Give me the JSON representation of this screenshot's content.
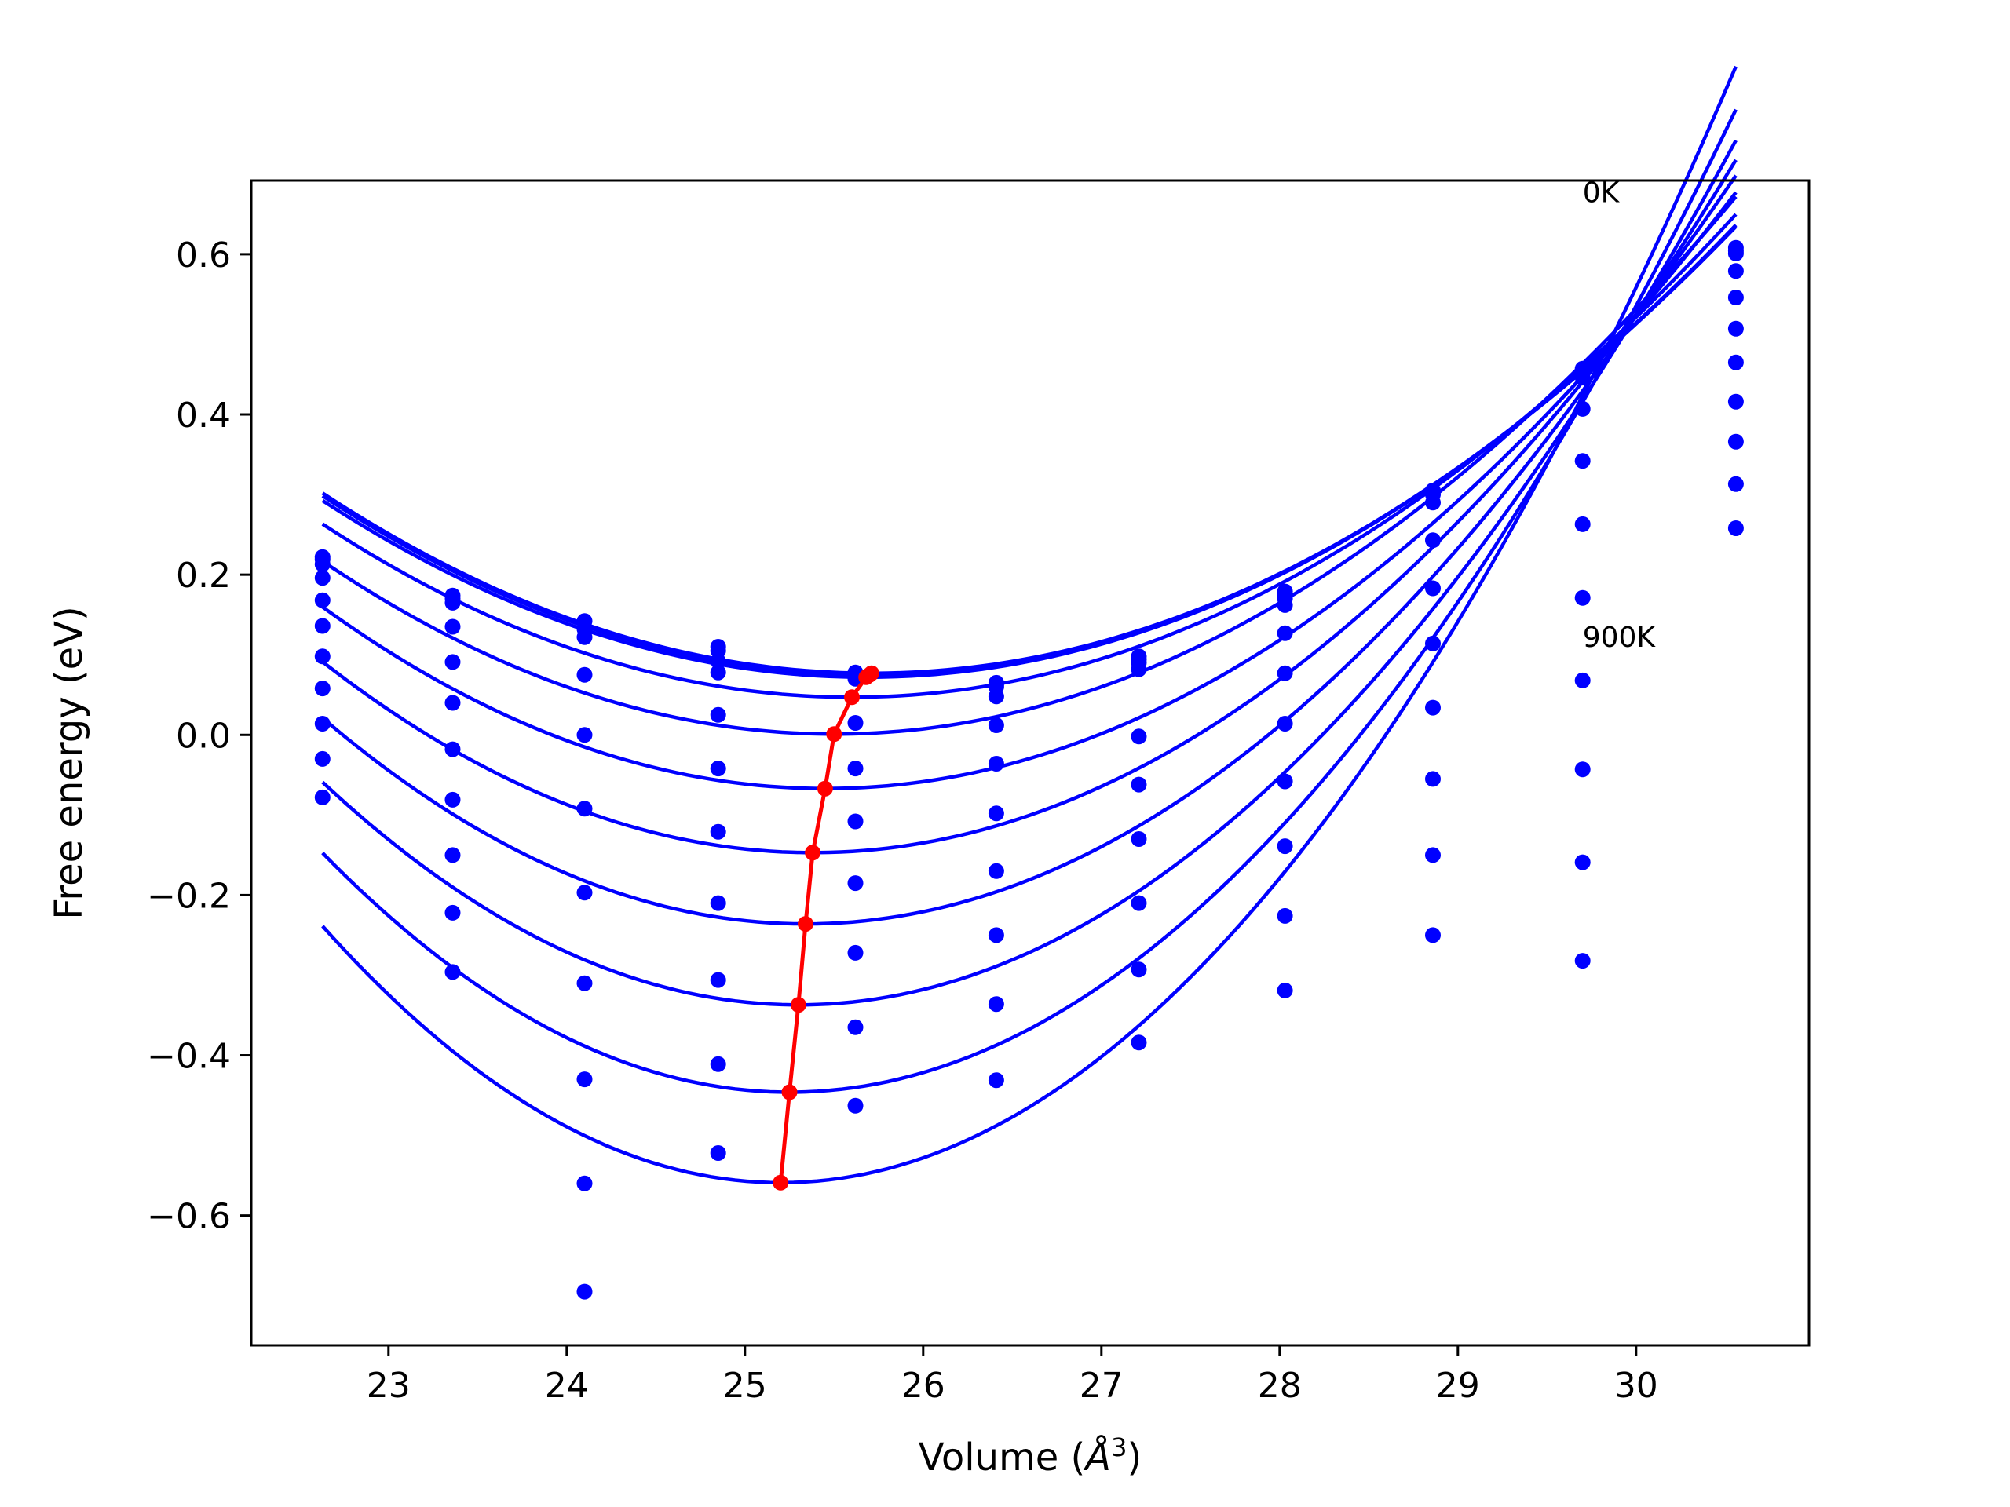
{
  "chart_data": {
    "type": "line",
    "xlabel": "Volume (Å³)",
    "xlabel_text": "Volume (",
    "xlabel_symbol": "Å",
    "xlabel_exp": "3",
    "xlabel_close": ")",
    "ylabel": "Free energy (eV)",
    "xlim": [
      22.23,
      30.97
    ],
    "ylim": [
      -0.762,
      0.692
    ],
    "x_ticks": [
      23,
      24,
      25,
      26,
      27,
      28,
      29,
      30
    ],
    "x_tick_labels": [
      "23",
      "24",
      "25",
      "26",
      "27",
      "28",
      "29",
      "30"
    ],
    "y_ticks": [
      -0.6,
      -0.4,
      -0.2,
      0.0,
      0.2,
      0.4,
      0.6
    ],
    "y_tick_labels": [
      "−0.6",
      "−0.4",
      "−0.2",
      "0.0",
      "0.2",
      "0.4",
      "0.6"
    ],
    "grid": false,
    "annotations": [
      {
        "text": "0K",
        "x": 29.7,
        "y": 0.665
      },
      {
        "text": "900K",
        "x": 29.7,
        "y": 0.11
      }
    ],
    "volumes": [
      22.63,
      23.36,
      24.1,
      24.85,
      25.62,
      26.41,
      27.21,
      28.03,
      28.86,
      29.7,
      30.56
    ],
    "series": [
      {
        "values": [
          0.222,
          0.174,
          0.142,
          0.11,
          0.078,
          0.065,
          0.098,
          0.179,
          0.305,
          0.457,
          0.608
        ]
      },
      {
        "values": [
          0.219,
          0.17,
          0.132,
          0.105,
          0.075,
          0.063,
          0.094,
          0.175,
          0.3,
          0.452,
          0.604
        ]
      },
      {
        "values": [
          0.213,
          0.165,
          0.122,
          0.092,
          0.07,
          0.06,
          0.09,
          0.17,
          0.29,
          0.446,
          0.601
        ]
      },
      {
        "values": [
          0.196,
          0.135,
          0.075,
          0.078,
          0.015,
          0.048,
          0.082,
          0.162,
          0.243,
          0.407,
          0.579
        ]
      },
      {
        "values": [
          0.168,
          0.091,
          0.0,
          0.025,
          -0.042,
          0.012,
          -0.002,
          0.127,
          0.183,
          0.342,
          0.546
        ]
      },
      {
        "values": [
          0.136,
          0.04,
          -0.092,
          -0.042,
          -0.108,
          -0.036,
          -0.062,
          0.077,
          0.114,
          0.263,
          0.507
        ]
      },
      {
        "values": [
          0.098,
          -0.018,
          -0.197,
          -0.121,
          -0.185,
          -0.098,
          -0.13,
          0.014,
          0.034,
          0.171,
          0.465
        ]
      },
      {
        "values": [
          0.058,
          -0.081,
          -0.31,
          -0.21,
          -0.272,
          -0.17,
          -0.21,
          -0.058,
          -0.055,
          0.068,
          0.416
        ]
      },
      {
        "values": [
          0.014,
          -0.15,
          -0.43,
          -0.306,
          -0.365,
          -0.25,
          -0.293,
          -0.139,
          -0.15,
          -0.043,
          0.366
        ]
      },
      {
        "values": [
          -0.03,
          -0.222,
          -0.56,
          -0.411,
          -0.463,
          -0.336,
          -0.384,
          -0.226,
          -0.25,
          -0.159,
          0.313
        ]
      },
      {
        "values": [
          -0.078,
          -0.296,
          -0.695,
          -0.522,
          null,
          -0.431,
          null,
          -0.319,
          null,
          -0.282,
          0.258
        ]
      }
    ],
    "fit_curves": [
      {
        "a": 0.0237,
        "v0": 25.71,
        "e0": 0.077
      },
      {
        "a": 0.0237,
        "v0": 25.7,
        "e0": 0.075
      },
      {
        "a": 0.0237,
        "v0": 25.68,
        "e0": 0.072
      },
      {
        "a": 0.0245,
        "v0": 25.6,
        "e0": 0.047
      },
      {
        "a": 0.0262,
        "v0": 25.5,
        "e0": 0.001
      },
      {
        "a": 0.0285,
        "v0": 25.45,
        "e0": -0.067
      },
      {
        "a": 0.0315,
        "v0": 25.38,
        "e0": -0.147
      },
      {
        "a": 0.035,
        "v0": 25.34,
        "e0": -0.236
      },
      {
        "a": 0.039,
        "v0": 25.3,
        "e0": -0.337
      },
      {
        "a": 0.0435,
        "v0": 25.25,
        "e0": -0.446
      },
      {
        "a": 0.0485,
        "v0": 25.2,
        "e0": -0.559
      }
    ],
    "minimum_path": {
      "x": [
        25.2,
        25.25,
        25.3,
        25.34,
        25.38,
        25.45,
        25.5,
        25.6,
        25.68,
        25.7,
        25.71
      ],
      "y": [
        -0.559,
        -0.446,
        -0.337,
        -0.236,
        -0.147,
        -0.067,
        0.001,
        0.047,
        0.072,
        0.075,
        0.077
      ]
    },
    "colors": {
      "series": "#0000ff",
      "minimum_path": "#ff0000",
      "axes": "#000000"
    }
  }
}
